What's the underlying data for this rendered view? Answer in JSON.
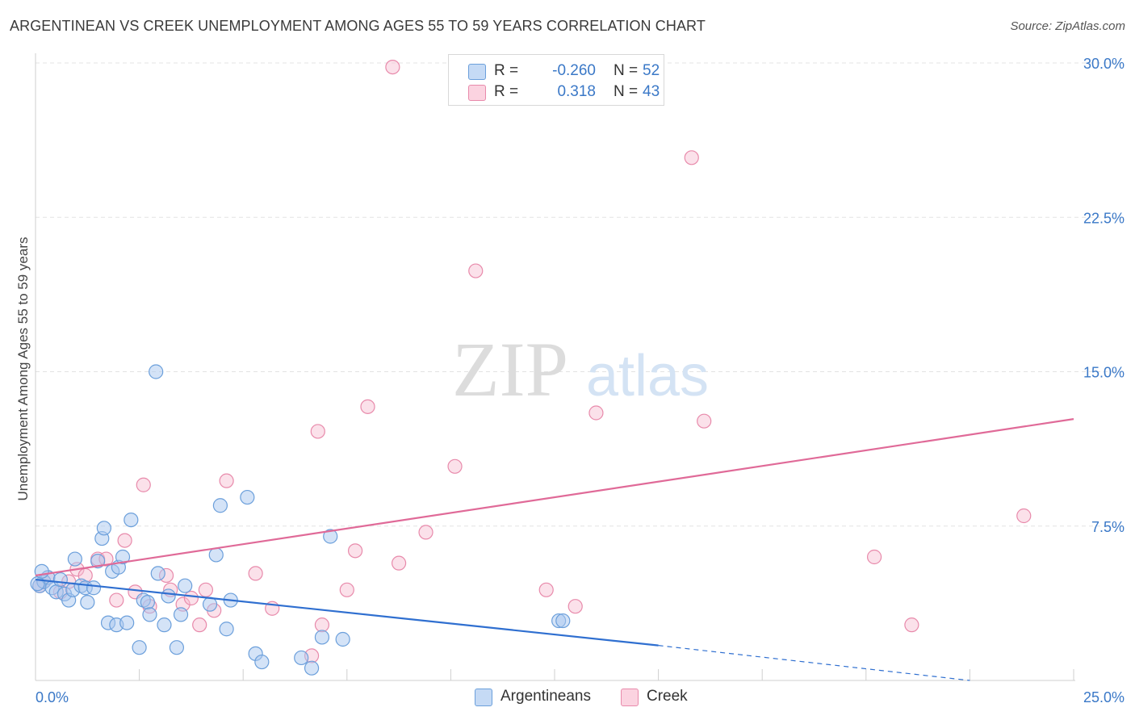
{
  "header": {
    "title": "ARGENTINEAN VS CREEK UNEMPLOYMENT AMONG AGES 55 TO 59 YEARS CORRELATION CHART",
    "source": "Source: ZipAtlas.com"
  },
  "watermark": {
    "zip": "ZIP",
    "atlas": "atlas"
  },
  "colors": {
    "argentineans_fill": "#a9c8f0",
    "argentineans_stroke": "#6b9fdb",
    "argentineans_line": "#2f6fd0",
    "creek_fill": "#f6bcd0",
    "creek_stroke": "#e88aab",
    "creek_line": "#e06a98",
    "axis_text": "#3a78c7",
    "grid": "#e3e3e3"
  },
  "legend": {
    "argentineans": {
      "r_label": "R =",
      "r_value": "-0.260",
      "n_label": "N =",
      "n_value": "52"
    },
    "creek": {
      "r_label": "R =",
      "r_value": "0.318",
      "n_label": "N =",
      "n_value": "43"
    }
  },
  "bottom_legend": {
    "argentineans": "Argentineans",
    "creek": "Creek"
  },
  "chart_data": {
    "type": "scatter",
    "title": "ARGENTINEAN VS CREEK UNEMPLOYMENT AMONG AGES 55 TO 59 YEARS CORRELATION CHART",
    "xlabel": "",
    "ylabel": "Unemployment Among Ages 55 to 59 years",
    "xlim": [
      0,
      25
    ],
    "ylim": [
      0,
      30
    ],
    "x_tick_labels": [
      "0.0%",
      "25.0%"
    ],
    "y_ticks": [
      7.5,
      15.0,
      22.5,
      30.0
    ],
    "y_tick_labels": [
      "7.5%",
      "15.0%",
      "22.5%",
      "30.0%"
    ],
    "grid": true,
    "series": [
      {
        "name": "Argentineans",
        "R": -0.26,
        "N": 52,
        "trend": {
          "x0": 0,
          "y0": 4.9,
          "x1": 15,
          "y1": 1.7,
          "dashed_to_x": 22.5,
          "dashed_to_y": 0.0
        },
        "points": [
          [
            0.1,
            4.6
          ],
          [
            0.2,
            4.8
          ],
          [
            0.3,
            5.0
          ],
          [
            0.4,
            4.5
          ],
          [
            0.5,
            4.3
          ],
          [
            0.6,
            4.9
          ],
          [
            0.7,
            4.2
          ],
          [
            0.8,
            3.9
          ],
          [
            0.9,
            4.4
          ],
          [
            0.95,
            5.9
          ],
          [
            1.1,
            4.6
          ],
          [
            1.2,
            4.5
          ],
          [
            1.25,
            3.8
          ],
          [
            1.4,
            4.5
          ],
          [
            1.5,
            5.8
          ],
          [
            1.6,
            6.9
          ],
          [
            1.65,
            7.4
          ],
          [
            1.75,
            2.8
          ],
          [
            1.85,
            5.3
          ],
          [
            1.95,
            2.7
          ],
          [
            2.0,
            5.5
          ],
          [
            2.1,
            6.0
          ],
          [
            2.2,
            2.8
          ],
          [
            2.3,
            7.8
          ],
          [
            2.5,
            1.6
          ],
          [
            2.6,
            3.9
          ],
          [
            2.7,
            3.8
          ],
          [
            2.75,
            3.2
          ],
          [
            2.9,
            15.0
          ],
          [
            2.95,
            5.2
          ],
          [
            3.1,
            2.7
          ],
          [
            3.2,
            4.1
          ],
          [
            3.4,
            1.6
          ],
          [
            3.5,
            3.2
          ],
          [
            3.6,
            4.6
          ],
          [
            4.2,
            3.7
          ],
          [
            4.35,
            6.1
          ],
          [
            4.45,
            8.5
          ],
          [
            4.6,
            2.5
          ],
          [
            4.7,
            3.9
          ],
          [
            5.1,
            8.9
          ],
          [
            5.3,
            1.3
          ],
          [
            5.45,
            0.9
          ],
          [
            6.4,
            1.1
          ],
          [
            6.65,
            0.6
          ],
          [
            6.9,
            2.1
          ],
          [
            7.1,
            7.0
          ],
          [
            7.4,
            2.0
          ],
          [
            12.6,
            2.9
          ],
          [
            12.7,
            2.9
          ],
          [
            0.05,
            4.7
          ],
          [
            0.15,
            5.3
          ]
        ]
      },
      {
        "name": "Creek",
        "R": 0.318,
        "N": 43,
        "trend": {
          "x0": 0,
          "y0": 5.1,
          "x1": 25,
          "y1": 12.7
        },
        "points": [
          [
            0.1,
            4.6
          ],
          [
            0.3,
            5.0
          ],
          [
            0.6,
            4.3
          ],
          [
            0.8,
            4.8
          ],
          [
            1.0,
            5.4
          ],
          [
            1.2,
            5.1
          ],
          [
            1.5,
            5.9
          ],
          [
            1.7,
            5.9
          ],
          [
            1.95,
            3.9
          ],
          [
            2.15,
            6.8
          ],
          [
            2.4,
            4.3
          ],
          [
            2.6,
            9.5
          ],
          [
            2.75,
            3.6
          ],
          [
            3.15,
            5.1
          ],
          [
            3.25,
            4.4
          ],
          [
            3.55,
            3.7
          ],
          [
            3.75,
            4.0
          ],
          [
            3.95,
            2.7
          ],
          [
            4.1,
            4.4
          ],
          [
            4.3,
            3.4
          ],
          [
            4.6,
            9.7
          ],
          [
            5.3,
            5.2
          ],
          [
            5.7,
            3.5
          ],
          [
            6.65,
            1.2
          ],
          [
            6.8,
            12.1
          ],
          [
            6.9,
            2.7
          ],
          [
            7.5,
            4.4
          ],
          [
            7.7,
            6.3
          ],
          [
            8.0,
            13.3
          ],
          [
            8.6,
            29.8
          ],
          [
            8.75,
            5.7
          ],
          [
            9.4,
            7.2
          ],
          [
            10.1,
            10.4
          ],
          [
            10.6,
            19.9
          ],
          [
            12.3,
            4.4
          ],
          [
            13.0,
            3.6
          ],
          [
            13.5,
            13.0
          ],
          [
            15.8,
            25.4
          ],
          [
            16.1,
            12.6
          ],
          [
            20.2,
            6.0
          ],
          [
            21.1,
            2.7
          ],
          [
            23.8,
            8.0
          ],
          [
            0.2,
            4.8
          ]
        ]
      }
    ]
  }
}
